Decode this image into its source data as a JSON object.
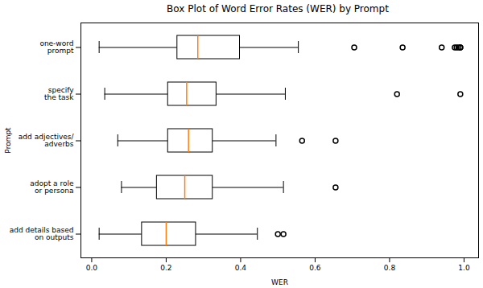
{
  "chart_data": {
    "type": "box",
    "title": "Box Plot of Word Error Rates (WER) by Prompt",
    "xlabel": "WER",
    "ylabel": "Prompt",
    "orientation": "horizontal",
    "categories": [
      "one-word\nprompt",
      "specify\nthe task",
      "add adjectives/\nadverbs",
      "adopt a role\nor persona",
      "add details based\non outputs"
    ],
    "whisker_low": [
      0.02,
      0.035,
      0.07,
      0.08,
      0.02
    ],
    "q1": [
      0.23,
      0.205,
      0.205,
      0.175,
      0.135
    ],
    "median": [
      0.285,
      0.255,
      0.26,
      0.25,
      0.2
    ],
    "q3": [
      0.398,
      0.335,
      0.325,
      0.325,
      0.28
    ],
    "whisker_high": [
      0.555,
      0.52,
      0.495,
      0.515,
      0.445
    ],
    "outliers": [
      [
        0.705,
        0.835,
        0.94,
        0.975,
        0.98,
        0.985,
        0.99,
        0.99
      ],
      [
        0.82,
        0.99
      ],
      [
        0.565,
        0.655
      ],
      [
        0.655
      ],
      [
        0.5,
        0.515
      ]
    ],
    "color": "#ff7f0e",
    "xlim": [
      -0.029,
      1.039
    ],
    "xticks": [
      {
        "value": 0,
        "label": "0.0"
      },
      0.2,
      0.4,
      0.6,
      0.8,
      {
        "value": 1,
        "label": "1.0"
      }
    ],
    "grid": false
  }
}
